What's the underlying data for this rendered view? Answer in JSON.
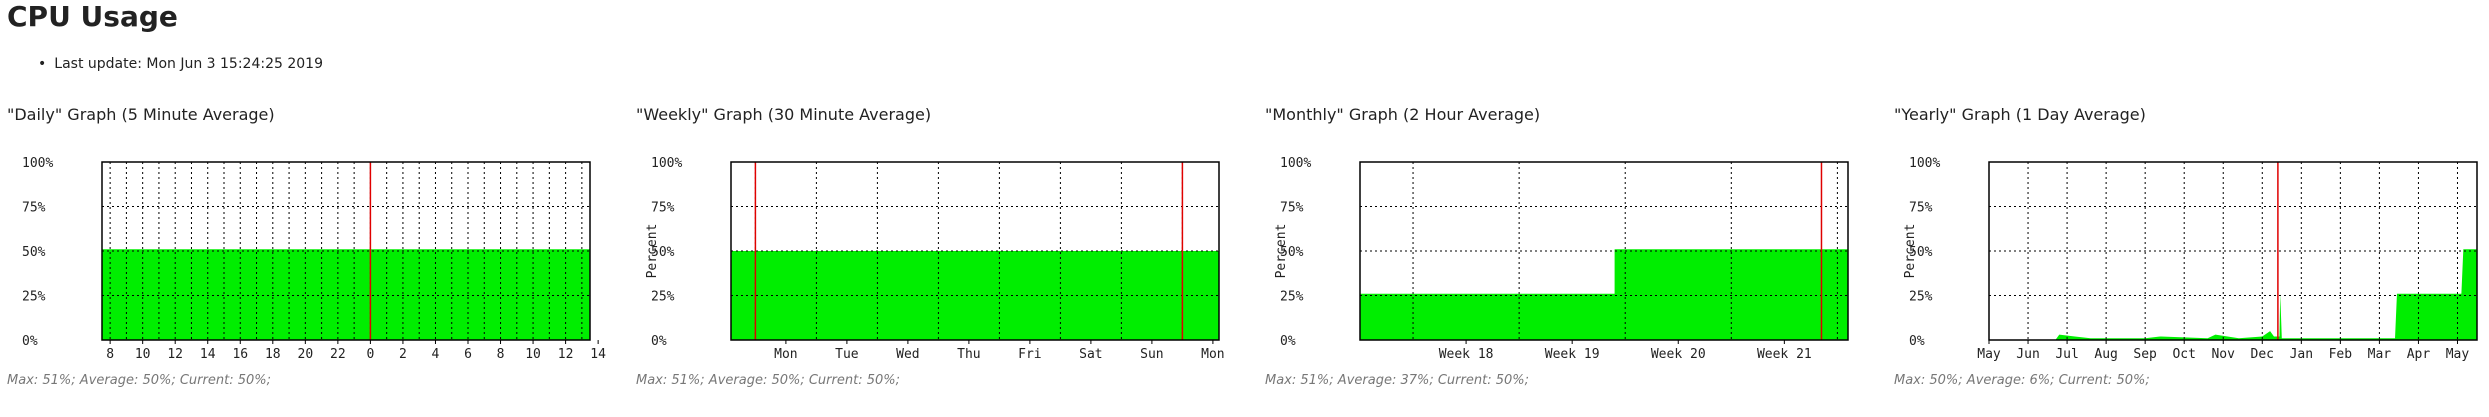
{
  "page": {
    "title": "CPU Usage",
    "last_update": "Last update: Mon Jun 3 15:24:25 2019"
  },
  "colors": {
    "fill": "#00ee00",
    "current_line": "#e00000",
    "axis": "#000000",
    "grid": "#000000"
  },
  "chart_data": [
    {
      "type": "area",
      "title": "\"Daily\" Graph (5 Minute Average)",
      "ylabel": "",
      "y_ticks": [
        "0%",
        "25%",
        "50%",
        "75%",
        "100%"
      ],
      "ylim": [
        0,
        100
      ],
      "x_range": [
        0,
        30
      ],
      "x_ticks": [
        {
          "x": 0.5,
          "label": "8"
        },
        {
          "x": 2.5,
          "label": "10"
        },
        {
          "x": 4.5,
          "label": "12"
        },
        {
          "x": 6.5,
          "label": "14"
        },
        {
          "x": 8.5,
          "label": "16"
        },
        {
          "x": 10.5,
          "label": "18"
        },
        {
          "x": 12.5,
          "label": "20"
        },
        {
          "x": 14.5,
          "label": "22"
        },
        {
          "x": 16.5,
          "label": "0"
        },
        {
          "x": 18.5,
          "label": "2"
        },
        {
          "x": 20.5,
          "label": "4"
        },
        {
          "x": 22.5,
          "label": "6"
        },
        {
          "x": 24.5,
          "label": "8"
        },
        {
          "x": 26.5,
          "label": "10"
        },
        {
          "x": 28.5,
          "label": "12"
        },
        {
          "x": 30.5,
          "label": "14"
        }
      ],
      "v_grid_step": 1,
      "v_grid_start": 0.5,
      "marker_x": 16.5,
      "series": [
        {
          "x": 0,
          "y": 51
        },
        {
          "x": 30,
          "y": 51
        }
      ],
      "stats": "Max: 51%; Average: 50%; Current: 50%;"
    },
    {
      "type": "area",
      "title": "\"Weekly\" Graph (30 Minute Average)",
      "ylabel": "Percent",
      "y_ticks": [
        "0%",
        "25%",
        "50%",
        "75%",
        "100%"
      ],
      "ylim": [
        0,
        100
      ],
      "x_range": [
        0,
        8
      ],
      "x_ticks": [
        {
          "x": 0.9,
          "label": "Mon"
        },
        {
          "x": 1.9,
          "label": "Tue"
        },
        {
          "x": 2.9,
          "label": "Wed"
        },
        {
          "x": 3.9,
          "label": "Thu"
        },
        {
          "x": 4.9,
          "label": "Fri"
        },
        {
          "x": 5.9,
          "label": "Sat"
        },
        {
          "x": 6.9,
          "label": "Sun"
        },
        {
          "x": 7.9,
          "label": "Mon"
        }
      ],
      "v_grid_step": 1,
      "v_grid_start": 0.4,
      "marker_x": [
        0.4,
        7.4
      ],
      "series": [
        {
          "x": 0,
          "y": 50
        },
        {
          "x": 8,
          "y": 50
        }
      ],
      "stats": "Max: 51%; Average: 50%; Current: 50%;"
    },
    {
      "type": "area",
      "title": "\"Monthly\" Graph (2 Hour Average)",
      "ylabel": "Percent",
      "y_ticks": [
        "0%",
        "25%",
        "50%",
        "75%",
        "100%"
      ],
      "ylim": [
        0,
        100
      ],
      "x_range": [
        0,
        4.6
      ],
      "x_ticks": [
        {
          "x": 1.0,
          "label": "Week 18"
        },
        {
          "x": 2.0,
          "label": "Week 19"
        },
        {
          "x": 3.0,
          "label": "Week 20"
        },
        {
          "x": 4.0,
          "label": "Week 21"
        }
      ],
      "v_grid_step": 1,
      "v_grid_start": 0.5,
      "marker_x": 4.35,
      "series": [
        {
          "x": 0,
          "y": 26
        },
        {
          "x": 2.4,
          "y": 26
        },
        {
          "x": 2.4,
          "y": 51
        },
        {
          "x": 4.6,
          "y": 51
        }
      ],
      "stats": "Max: 51%; Average: 37%; Current: 50%;"
    },
    {
      "type": "area",
      "title": "\"Yearly\" Graph (1 Day Average)",
      "ylabel": "Percent",
      "y_ticks": [
        "0%",
        "25%",
        "50%",
        "75%",
        "100%"
      ],
      "ylim": [
        0,
        100
      ],
      "x_range": [
        0,
        12.5
      ],
      "x_ticks": [
        {
          "x": 0,
          "label": "May"
        },
        {
          "x": 1,
          "label": "Jun"
        },
        {
          "x": 2,
          "label": "Jul"
        },
        {
          "x": 3,
          "label": "Aug"
        },
        {
          "x": 4,
          "label": "Sep"
        },
        {
          "x": 5,
          "label": "Oct"
        },
        {
          "x": 6,
          "label": "Nov"
        },
        {
          "x": 7,
          "label": "Dec"
        },
        {
          "x": 8,
          "label": "Jan"
        },
        {
          "x": 9,
          "label": "Feb"
        },
        {
          "x": 10,
          "label": "Mar"
        },
        {
          "x": 11,
          "label": "Apr"
        },
        {
          "x": 12,
          "label": "May"
        }
      ],
      "v_grid_step": 1,
      "v_grid_start": 0,
      "marker_x": 7.4,
      "series": [
        {
          "x": 0,
          "y": 0
        },
        {
          "x": 1.7,
          "y": 0
        },
        {
          "x": 1.8,
          "y": 3
        },
        {
          "x": 2.2,
          "y": 2
        },
        {
          "x": 2.6,
          "y": 1
        },
        {
          "x": 4.0,
          "y": 1
        },
        {
          "x": 4.4,
          "y": 2
        },
        {
          "x": 5.6,
          "y": 1
        },
        {
          "x": 5.8,
          "y": 3
        },
        {
          "x": 6.4,
          "y": 1
        },
        {
          "x": 7.0,
          "y": 2
        },
        {
          "x": 7.2,
          "y": 5
        },
        {
          "x": 7.3,
          "y": 2
        },
        {
          "x": 7.44,
          "y": 2
        },
        {
          "x": 7.46,
          "y": 26
        },
        {
          "x": 7.5,
          "y": 1
        },
        {
          "x": 10.4,
          "y": 1
        },
        {
          "x": 10.45,
          "y": 26
        },
        {
          "x": 12.1,
          "y": 26
        },
        {
          "x": 12.15,
          "y": 51
        },
        {
          "x": 12.5,
          "y": 51
        }
      ],
      "stats": "Max: 50%; Average: 6%; Current: 50%;"
    }
  ]
}
